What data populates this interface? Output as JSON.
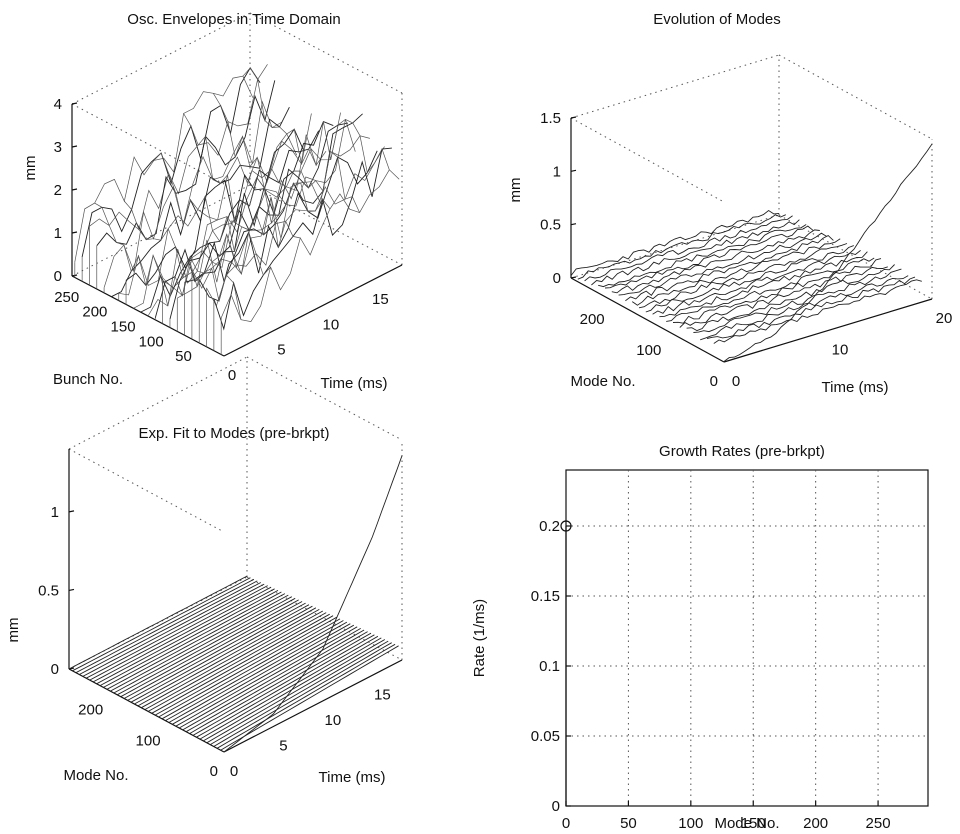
{
  "chart_data": [
    {
      "id": "p1",
      "type": "surface",
      "title": "Osc. Envelopes in Time Domain",
      "xlabel": "Time  (ms)",
      "ylabel": "Bunch No.",
      "zlabel": "mm",
      "x_ticks": [
        "0",
        "5",
        "10",
        "15"
      ],
      "y_ticks": [
        "250",
        "200",
        "150",
        "100",
        "50"
      ],
      "z_ticks": [
        "0",
        "1",
        "2",
        "3",
        "4"
      ],
      "xlim": [
        0,
        18
      ],
      "ylim": [
        0,
        270
      ],
      "zlim": [
        0,
        4
      ],
      "grid": true,
      "description_data": {
        "time_ms": [
          0,
          18
        ],
        "bunches": [
          0,
          270
        ],
        "peak_mm": 4.0
      }
    },
    {
      "id": "p2",
      "type": "surface",
      "title": "Evolution of Modes",
      "xlabel": "Time (ms)",
      "ylabel": "Mode No.",
      "zlabel": "mm",
      "x_ticks": [
        "0",
        "10",
        "20"
      ],
      "y_ticks": [
        "200",
        "100",
        "0"
      ],
      "z_ticks": [
        "0",
        "0.5",
        "1",
        "1.5"
      ],
      "xlim": [
        0,
        20
      ],
      "ylim": [
        0,
        270
      ],
      "zlim": [
        0,
        1.5
      ],
      "grid": true,
      "growing_mode": {
        "mode": 0,
        "time_ms": [
          0,
          5,
          10,
          15,
          20
        ],
        "amplitude_mm": [
          0.0,
          0.12,
          0.45,
          0.95,
          1.45
        ]
      },
      "other_modes_amplitude_mm": 0.12
    },
    {
      "id": "p3",
      "type": "surface",
      "title": "Exp. Fit to Modes (pre-brkpt)",
      "xlabel": "Time (ms)",
      "ylabel": "Mode No.",
      "zlabel": "mm",
      "x_ticks": [
        "0",
        "5",
        "10",
        "15"
      ],
      "y_ticks": [
        "200",
        "100",
        "0"
      ],
      "z_ticks": [
        "0",
        "0.5",
        "1"
      ],
      "xlim": [
        0,
        18
      ],
      "ylim": [
        0,
        270
      ],
      "zlim": [
        0,
        1.4
      ],
      "grid": true,
      "growing_mode": {
        "mode": 0,
        "time_ms": [
          0,
          5,
          10,
          15,
          18
        ],
        "amplitude_mm": [
          0.0,
          0.08,
          0.33,
          0.88,
          1.3
        ]
      }
    },
    {
      "id": "p4",
      "type": "scatter",
      "title": "Growth Rates (pre-brkpt)",
      "xlabel": "Mode No.",
      "ylabel": "Rate  (1/ms)",
      "x_ticks": [
        "0",
        "50",
        "100",
        "150",
        "200",
        "250"
      ],
      "y_ticks": [
        "0",
        "0.05",
        "0.1",
        "0.15",
        "0.2"
      ],
      "xlim": [
        0,
        290
      ],
      "ylim": [
        0,
        0.24
      ],
      "grid": true,
      "points": [
        {
          "x": 0,
          "y": 0.2
        }
      ]
    }
  ]
}
